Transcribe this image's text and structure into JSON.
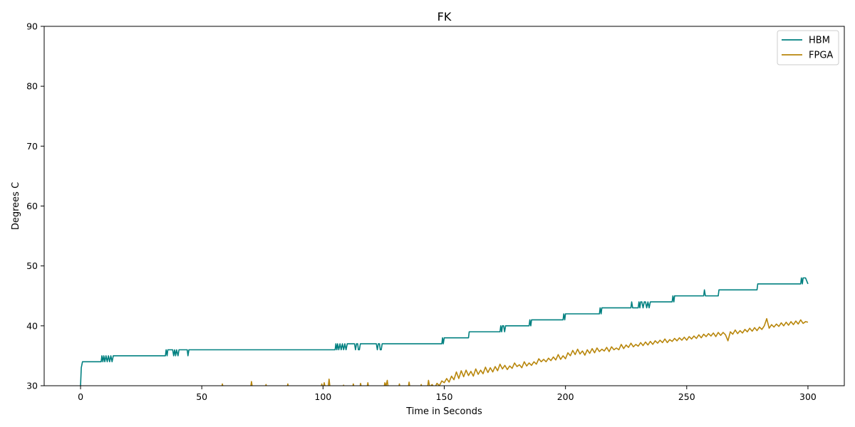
{
  "chart_data": {
    "type": "line",
    "title": "FK",
    "xlabel": "Time in Seconds",
    "ylabel": "Degrees C",
    "xlim": [
      -15,
      315
    ],
    "ylim": [
      30,
      90
    ],
    "xticks": [
      0,
      50,
      100,
      150,
      200,
      250,
      300
    ],
    "yticks": [
      30,
      40,
      50,
      60,
      70,
      80,
      90
    ],
    "xtick_labels": [
      "0",
      "50",
      "100",
      "150",
      "200",
      "250",
      "300"
    ],
    "ytick_labels": [
      "30",
      "40",
      "50",
      "60",
      "70",
      "80",
      "90"
    ],
    "grid": false,
    "legend_position": "top-right",
    "series": [
      {
        "name": "HBM",
        "color": "#008080",
        "points": [
          [
            0,
            30
          ],
          [
            0.3,
            33
          ],
          [
            0.8,
            34
          ],
          [
            1,
            34
          ],
          [
            8.5,
            34
          ],
          [
            8.8,
            35
          ],
          [
            9.2,
            34
          ],
          [
            9.6,
            35
          ],
          [
            10,
            34
          ],
          [
            10.5,
            35
          ],
          [
            11,
            34
          ],
          [
            11.5,
            35
          ],
          [
            12,
            34
          ],
          [
            12.5,
            35
          ],
          [
            13,
            34
          ],
          [
            13.5,
            35
          ],
          [
            14,
            35
          ],
          [
            35,
            35
          ],
          [
            35.3,
            36
          ],
          [
            35.7,
            35
          ],
          [
            36,
            36
          ],
          [
            38,
            36
          ],
          [
            38.4,
            35
          ],
          [
            38.8,
            36
          ],
          [
            39.2,
            35
          ],
          [
            39.6,
            36
          ],
          [
            40.2,
            35
          ],
          [
            40.6,
            36
          ],
          [
            44,
            36
          ],
          [
            44.3,
            35
          ],
          [
            44.7,
            36
          ],
          [
            105,
            36
          ],
          [
            105.3,
            37
          ],
          [
            105.7,
            36
          ],
          [
            106,
            37
          ],
          [
            106.5,
            36
          ],
          [
            107,
            37
          ],
          [
            107.5,
            36
          ],
          [
            108,
            37
          ],
          [
            108.5,
            36
          ],
          [
            109,
            37
          ],
          [
            109.5,
            36
          ],
          [
            110,
            37
          ],
          [
            113,
            37
          ],
          [
            113.4,
            36
          ],
          [
            113.8,
            37
          ],
          [
            114.3,
            37
          ],
          [
            114.6,
            36
          ],
          [
            115,
            36
          ],
          [
            115.4,
            37
          ],
          [
            122,
            37
          ],
          [
            122.4,
            36
          ],
          [
            122.8,
            37
          ],
          [
            123.3,
            37
          ],
          [
            123.6,
            36
          ],
          [
            124,
            36
          ],
          [
            124.4,
            37
          ],
          [
            149,
            37
          ],
          [
            149.3,
            38
          ],
          [
            149.6,
            37
          ],
          [
            150,
            38
          ],
          [
            160,
            38
          ],
          [
            160.3,
            39
          ],
          [
            173,
            39
          ],
          [
            173.3,
            40
          ],
          [
            173.7,
            39
          ],
          [
            174,
            40
          ],
          [
            174.5,
            40
          ],
          [
            174.9,
            39
          ],
          [
            175.3,
            40
          ],
          [
            185,
            40
          ],
          [
            185.3,
            41
          ],
          [
            185.7,
            40
          ],
          [
            186,
            41
          ],
          [
            199,
            41
          ],
          [
            199.3,
            42
          ],
          [
            199.7,
            41
          ],
          [
            200,
            42
          ],
          [
            214,
            42
          ],
          [
            214.3,
            43
          ],
          [
            214.7,
            42
          ],
          [
            215,
            43
          ],
          [
            227,
            43
          ],
          [
            227.3,
            44
          ],
          [
            227.7,
            43
          ],
          [
            228,
            43
          ],
          [
            230,
            43
          ],
          [
            230.3,
            44
          ],
          [
            230.7,
            43
          ],
          [
            231,
            44
          ],
          [
            231.5,
            44
          ],
          [
            232,
            43
          ],
          [
            232.5,
            44
          ],
          [
            233,
            44
          ],
          [
            233.5,
            43
          ],
          [
            234,
            44
          ],
          [
            234.5,
            43
          ],
          [
            235,
            44
          ],
          [
            244,
            44
          ],
          [
            244.3,
            45
          ],
          [
            244.7,
            44
          ],
          [
            245,
            45
          ],
          [
            257,
            45
          ],
          [
            257.3,
            46
          ],
          [
            257.7,
            45
          ],
          [
            263,
            45
          ],
          [
            263.3,
            46
          ],
          [
            279,
            46
          ],
          [
            279.3,
            47
          ],
          [
            297,
            47
          ],
          [
            297.3,
            48
          ],
          [
            297.7,
            47
          ],
          [
            298,
            48
          ],
          [
            299,
            48
          ],
          [
            300,
            47
          ]
        ]
      },
      {
        "name": "FPGA",
        "color": "#b8860b",
        "points": [
          [
            58,
            29.3
          ],
          [
            58.5,
            30.3
          ],
          [
            59,
            29.3
          ],
          [
            70,
            29.3
          ],
          [
            70.5,
            30.7
          ],
          [
            71,
            29.3
          ],
          [
            76,
            29.3
          ],
          [
            76.5,
            30.2
          ],
          [
            77,
            29.3
          ],
          [
            85,
            29.3
          ],
          [
            85.5,
            30.3
          ],
          [
            86,
            29.3
          ],
          [
            99,
            29.3
          ],
          [
            99.5,
            30.3
          ],
          [
            100,
            29.3
          ],
          [
            100.5,
            30.5
          ],
          [
            101,
            29.5
          ],
          [
            102,
            29.3
          ],
          [
            102.5,
            31.1
          ],
          [
            103,
            29.3
          ],
          [
            108,
            29.3
          ],
          [
            108.5,
            30.1
          ],
          [
            109,
            29.3
          ],
          [
            112,
            29.3
          ],
          [
            112.5,
            30.3
          ],
          [
            113,
            29.4
          ],
          [
            115,
            29.3
          ],
          [
            115.5,
            30.4
          ],
          [
            116,
            29.3
          ],
          [
            118,
            29.3
          ],
          [
            118.5,
            30.5
          ],
          [
            119,
            29.3
          ],
          [
            125,
            29.3
          ],
          [
            125.5,
            30.5
          ],
          [
            126,
            30
          ],
          [
            126.5,
            30.9
          ],
          [
            127,
            29.3
          ],
          [
            131,
            29.3
          ],
          [
            131.5,
            30.3
          ],
          [
            132,
            29.3
          ],
          [
            135,
            29.3
          ],
          [
            135.5,
            30.6
          ],
          [
            136,
            29.3
          ],
          [
            140,
            29.3
          ],
          [
            140.5,
            30.2
          ],
          [
            141,
            29.5
          ],
          [
            143,
            29.3
          ],
          [
            143.5,
            30.9
          ],
          [
            144,
            29.8
          ],
          [
            145,
            30.2
          ],
          [
            146,
            29.6
          ],
          [
            147,
            30.4
          ],
          [
            148,
            30.0
          ],
          [
            149,
            30.8
          ],
          [
            150,
            30.5
          ],
          [
            151,
            31.2
          ],
          [
            152,
            30.6
          ],
          [
            153,
            31.6
          ],
          [
            154,
            31.0
          ],
          [
            155,
            32.3
          ],
          [
            156,
            31.2
          ],
          [
            157,
            32.5
          ],
          [
            158,
            31.5
          ],
          [
            159,
            32.6
          ],
          [
            160,
            31.7
          ],
          [
            161,
            32.4
          ],
          [
            162,
            31.6
          ],
          [
            163,
            32.8
          ],
          [
            164,
            31.9
          ],
          [
            165,
            32.6
          ],
          [
            166,
            32.0
          ],
          [
            167,
            33.1
          ],
          [
            168,
            32.2
          ],
          [
            169,
            33.0
          ],
          [
            170,
            32.3
          ],
          [
            171,
            33.2
          ],
          [
            172,
            32.5
          ],
          [
            173,
            33.6
          ],
          [
            174,
            32.8
          ],
          [
            175,
            33.4
          ],
          [
            176,
            32.7
          ],
          [
            177,
            33.3
          ],
          [
            178,
            32.9
          ],
          [
            179,
            33.8
          ],
          [
            180,
            33.2
          ],
          [
            181,
            33.5
          ],
          [
            182,
            33.0
          ],
          [
            183,
            34.0
          ],
          [
            184,
            33.3
          ],
          [
            185,
            33.8
          ],
          [
            186,
            33.4
          ],
          [
            187,
            34.0
          ],
          [
            188,
            33.6
          ],
          [
            189,
            34.5
          ],
          [
            190,
            34.0
          ],
          [
            191,
            34.4
          ],
          [
            192,
            34.0
          ],
          [
            193,
            34.6
          ],
          [
            194,
            34.2
          ],
          [
            195,
            34.8
          ],
          [
            196,
            34.3
          ],
          [
            197,
            35.2
          ],
          [
            198,
            34.4
          ],
          [
            199,
            35.0
          ],
          [
            200,
            34.5
          ],
          [
            201,
            35.5
          ],
          [
            202,
            35.0
          ],
          [
            203,
            35.9
          ],
          [
            204,
            35.2
          ],
          [
            205,
            36.1
          ],
          [
            206,
            35.3
          ],
          [
            207,
            35.8
          ],
          [
            208,
            35.1
          ],
          [
            209,
            36.0
          ],
          [
            210,
            35.4
          ],
          [
            211,
            36.2
          ],
          [
            212,
            35.5
          ],
          [
            213,
            36.3
          ],
          [
            214,
            35.7
          ],
          [
            215,
            36.1
          ],
          [
            216,
            35.8
          ],
          [
            217,
            36.4
          ],
          [
            218,
            35.7
          ],
          [
            219,
            36.5
          ],
          [
            220,
            36.0
          ],
          [
            221,
            36.3
          ],
          [
            222,
            36.0
          ],
          [
            223,
            36.9
          ],
          [
            224,
            36.2
          ],
          [
            225,
            36.8
          ],
          [
            226,
            36.4
          ],
          [
            227,
            37.1
          ],
          [
            228,
            36.5
          ],
          [
            229,
            36.9
          ],
          [
            230,
            36.6
          ],
          [
            231,
            37.2
          ],
          [
            232,
            36.7
          ],
          [
            233,
            37.3
          ],
          [
            234,
            36.8
          ],
          [
            235,
            37.4
          ],
          [
            236,
            36.9
          ],
          [
            237,
            37.5
          ],
          [
            238,
            37.1
          ],
          [
            239,
            37.6
          ],
          [
            240,
            37.2
          ],
          [
            241,
            37.8
          ],
          [
            242,
            37.2
          ],
          [
            243,
            37.7
          ],
          [
            244,
            37.4
          ],
          [
            245,
            37.9
          ],
          [
            246,
            37.5
          ],
          [
            247,
            38.0
          ],
          [
            248,
            37.6
          ],
          [
            249,
            38.1
          ],
          [
            250,
            37.6
          ],
          [
            251,
            38.2
          ],
          [
            252,
            37.8
          ],
          [
            253,
            38.3
          ],
          [
            254,
            37.9
          ],
          [
            255,
            38.5
          ],
          [
            256,
            38.0
          ],
          [
            257,
            38.6
          ],
          [
            258,
            38.2
          ],
          [
            259,
            38.7
          ],
          [
            260,
            38.3
          ],
          [
            261,
            38.8
          ],
          [
            262,
            38.2
          ],
          [
            263,
            38.9
          ],
          [
            264,
            38.4
          ],
          [
            265,
            38.9
          ],
          [
            266,
            38.5
          ],
          [
            267,
            37.5
          ],
          [
            268,
            39.0
          ],
          [
            269,
            38.6
          ],
          [
            270,
            39.3
          ],
          [
            271,
            38.7
          ],
          [
            272,
            39.2
          ],
          [
            273,
            38.8
          ],
          [
            274,
            39.4
          ],
          [
            275,
            39.0
          ],
          [
            276,
            39.6
          ],
          [
            277,
            39.1
          ],
          [
            278,
            39.7
          ],
          [
            279,
            39.2
          ],
          [
            280,
            39.8
          ],
          [
            281,
            39.4
          ],
          [
            282,
            40.0
          ],
          [
            283,
            41.2
          ],
          [
            284,
            39.6
          ],
          [
            285,
            40.2
          ],
          [
            286,
            39.8
          ],
          [
            287,
            40.3
          ],
          [
            288,
            39.9
          ],
          [
            289,
            40.5
          ],
          [
            290,
            40.0
          ],
          [
            291,
            40.6
          ],
          [
            292,
            40.1
          ],
          [
            293,
            40.7
          ],
          [
            294,
            40.2
          ],
          [
            295,
            40.8
          ],
          [
            296,
            40.3
          ],
          [
            297,
            41.0
          ],
          [
            298,
            40.4
          ],
          [
            299,
            40.7
          ],
          [
            300,
            40.6
          ]
        ]
      }
    ]
  }
}
